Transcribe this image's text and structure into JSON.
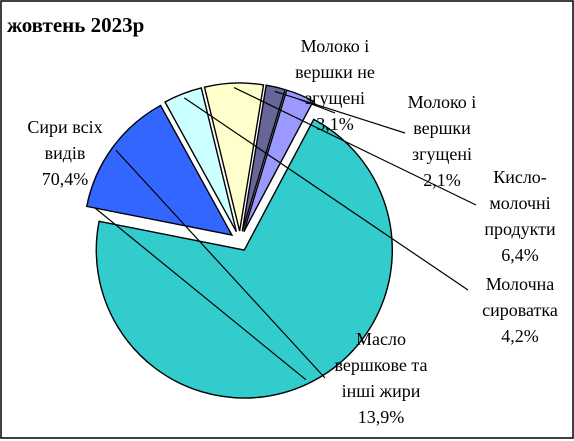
{
  "chart_data": {
    "type": "pie",
    "title": "жовтень 2023р",
    "exploded": true,
    "slices": [
      {
        "label_lines": [
          "Сири всіх",
          "видів"
        ],
        "value_text": "70,4%",
        "value": 70.4,
        "color": "#33cccc"
      },
      {
        "label_lines": [
          "Масло",
          "вершкове та",
          "інші жири"
        ],
        "value_text": "13,9%",
        "value": 13.9,
        "color": "#3366ff"
      },
      {
        "label_lines": [
          "Молочна",
          "сироватка"
        ],
        "value_text": "4,2%",
        "value": 4.2,
        "color": "#ccffff"
      },
      {
        "label_lines": [
          "Кисло-",
          "молочні",
          "продукти"
        ],
        "value_text": "6,4%",
        "value": 6.4,
        "color": "#ffffcc"
      },
      {
        "label_lines": [
          "Молоко і",
          "вершки",
          "згущені"
        ],
        "value_text": "2,1%",
        "value": 2.1,
        "color": "#666699"
      },
      {
        "label_lines": [
          "Молоко і",
          "вершки не",
          "згущені"
        ],
        "value_text": "3,1%",
        "value": 3.1,
        "color": "#9999ff"
      }
    ]
  }
}
